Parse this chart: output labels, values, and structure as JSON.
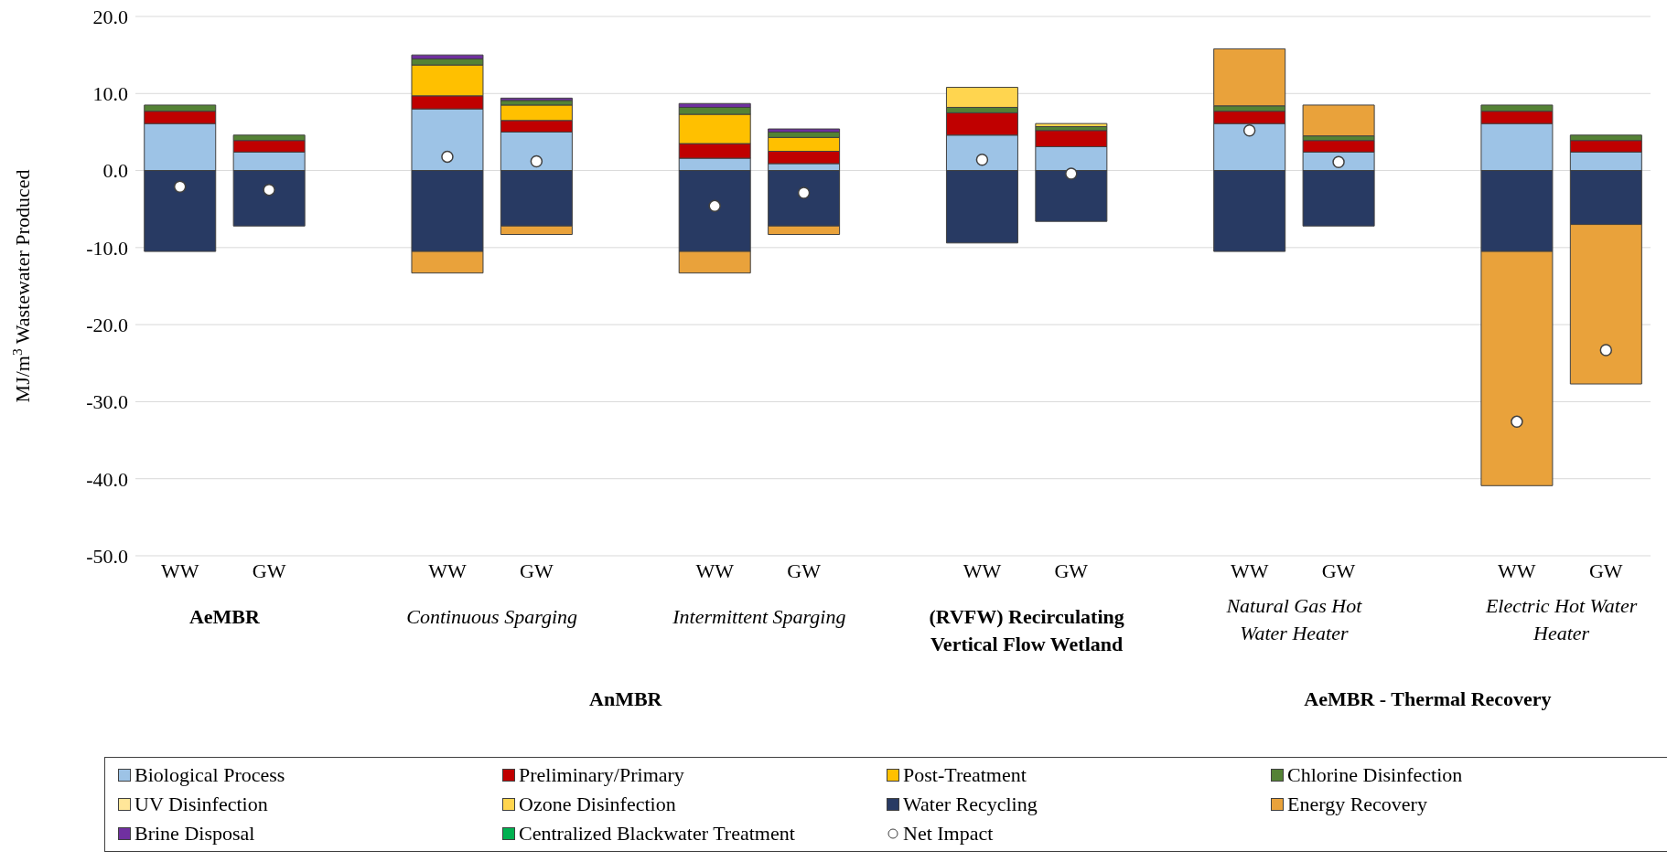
{
  "chart_data": {
    "type": "bar",
    "stacked": true,
    "ylabel": "MJ/m$^{3}$ Wastewater  Produced",
    "categories": [
      "WW",
      "GW",
      null,
      "WW",
      "GW",
      null,
      "WW",
      "GW",
      null,
      "WW",
      "GW",
      null,
      "WW",
      "GW",
      null,
      "WW",
      "GW"
    ],
    "ylim": [
      -50,
      20
    ],
    "yticks": [
      {
        "value": -50,
        "label": "-50.0"
      },
      {
        "value": -40,
        "label": "-40.0"
      },
      {
        "value": -30,
        "label": "-30.0"
      },
      {
        "value": -20,
        "label": "-20.0"
      },
      {
        "value": -10,
        "label": "-10.0"
      },
      {
        "value": 0,
        "label": "0.0"
      },
      {
        "value": 10,
        "label": "10.0"
      },
      {
        "value": 20,
        "label": "20.0"
      }
    ],
    "grid": "y",
    "legend": "bottom",
    "marker": "circle",
    "series": [
      {
        "name": "Biological Process",
        "color": "#9dc3e6",
        "values": [
          6.1,
          2.4,
          null,
          8.0,
          5.0,
          null,
          1.6,
          0.9,
          null,
          4.6,
          3.1,
          null,
          6.1,
          2.4,
          null,
          6.1,
          2.4
        ]
      },
      {
        "name": "Preliminary/Primary",
        "color": "#c00000",
        "values": [
          1.6,
          1.5,
          null,
          1.7,
          1.5,
          null,
          1.9,
          1.6,
          null,
          2.9,
          2.1,
          null,
          1.6,
          1.5,
          null,
          1.6,
          1.5
        ]
      },
      {
        "name": "Post-Treatment",
        "color": "#ffc000",
        "values": [
          null,
          null,
          null,
          4.0,
          2.0,
          null,
          3.8,
          1.8,
          null,
          null,
          null,
          null,
          null,
          null,
          null,
          null,
          null
        ]
      },
      {
        "name": "Chlorine Disinfection",
        "color": "#548235",
        "values": [
          0.8,
          0.7,
          null,
          0.8,
          0.6,
          null,
          0.9,
          0.7,
          null,
          0.7,
          0.5,
          null,
          0.7,
          0.6,
          null,
          0.8,
          0.7
        ]
      },
      {
        "name": "UV Disinfection",
        "color": "#ffe699",
        "values": [
          null,
          null,
          null,
          null,
          null,
          null,
          null,
          null,
          null,
          null,
          null,
          null,
          null,
          null,
          null,
          null,
          null
        ]
      },
      {
        "name": "Ozone Disinfection",
        "color": "#ffd54f",
        "values": [
          null,
          null,
          null,
          null,
          null,
          null,
          null,
          null,
          null,
          2.6,
          0.4,
          null,
          null,
          null,
          null,
          null,
          null
        ]
      },
      {
        "name": "Water Recycling",
        "color": "#283a63",
        "values": [
          -10.5,
          -7.2,
          null,
          -10.5,
          -7.2,
          null,
          -10.5,
          -7.2,
          null,
          -9.4,
          -6.6,
          null,
          -10.5,
          -7.2,
          null,
          -10.5,
          -7.0
        ]
      },
      {
        "name": "Energy Recovery",
        "color": "#e9a23b",
        "values": [
          null,
          null,
          null,
          -2.8,
          -1.1,
          null,
          -2.8,
          -1.1,
          null,
          null,
          null,
          null,
          7.4,
          4.0,
          null,
          -30.4,
          -20.7
        ]
      },
      {
        "name": "Brine Disposal",
        "color": "#7030a0",
        "values": [
          null,
          null,
          null,
          0.5,
          0.3,
          null,
          0.5,
          0.4,
          null,
          null,
          null,
          null,
          null,
          null,
          null,
          null,
          null
        ]
      },
      {
        "name": "Centralized Blackwater Treatment",
        "color": "#00b050",
        "values": [
          null,
          null,
          null,
          null,
          null,
          null,
          null,
          null,
          null,
          null,
          null,
          null,
          null,
          null,
          null,
          null,
          null
        ]
      },
      {
        "name": "Net Impact",
        "type": "scatter",
        "color": "#ffffff",
        "values": [
          -2.1,
          -2.5,
          null,
          1.8,
          1.2,
          null,
          -4.6,
          -2.9,
          null,
          1.4,
          -0.4,
          null,
          5.2,
          1.1,
          null,
          -32.6,
          -23.3
        ]
      }
    ],
    "annotations": [
      "AeMBR",
      "Continuous Sparging",
      "Intermittent Sparging",
      "(RVFW) Recirculating Vertical Flow Wetland",
      "Natural Gas Hot Water Heater",
      "Electric Hot Water Heater",
      "AnMBR",
      "AeMBR - Thermal  Recovery"
    ]
  }
}
